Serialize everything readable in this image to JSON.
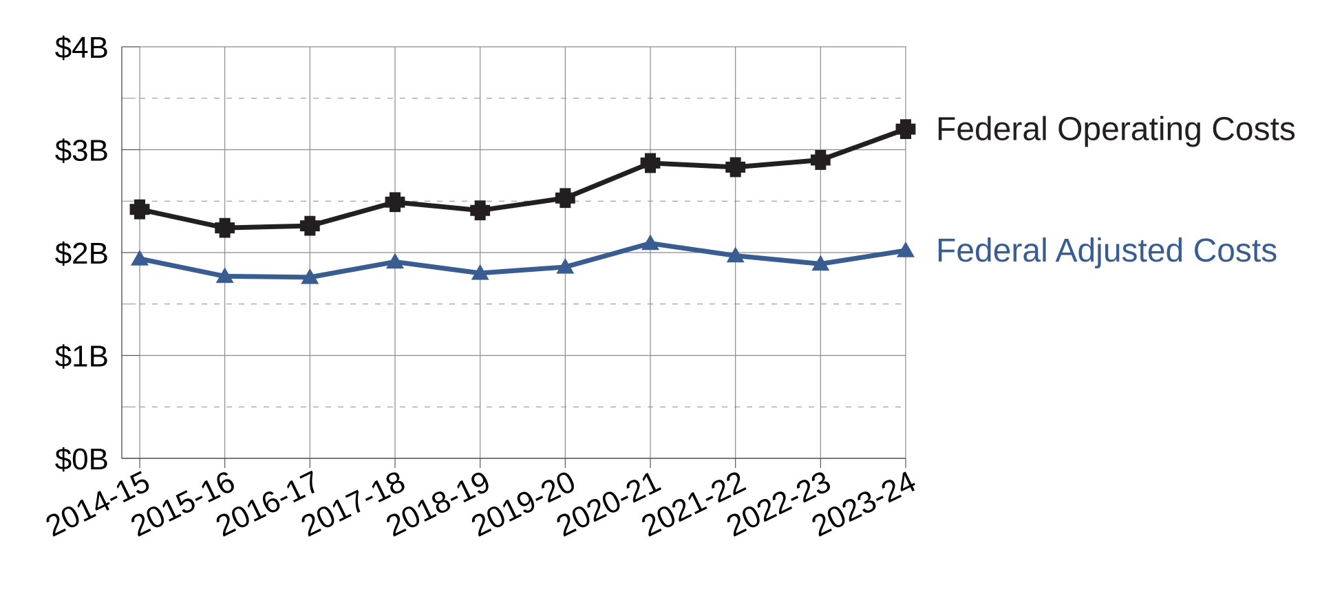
{
  "chart_data": {
    "type": "line",
    "categories": [
      "2014-15",
      "2015-16",
      "2016-17",
      "2017-18",
      "2018-19",
      "2019-20",
      "2020-21",
      "2021-22",
      "2022-23",
      "2023-24"
    ],
    "series": [
      {
        "name": "Federal Operating Costs",
        "values": [
          2.42,
          2.24,
          2.26,
          2.49,
          2.41,
          2.53,
          2.87,
          2.83,
          2.9,
          3.2
        ],
        "color": "#231f20",
        "marker": "cross"
      },
      {
        "name": "Federal Adjusted Costs",
        "values": [
          1.94,
          1.77,
          1.76,
          1.91,
          1.8,
          1.86,
          2.09,
          1.97,
          1.89,
          2.02
        ],
        "color": "#3a5d91",
        "marker": "triangle"
      }
    ],
    "yticks": [
      "$0B",
      "$1B",
      "$2B",
      "$3B",
      "$4B"
    ],
    "ytick_values": [
      0,
      1,
      2,
      3,
      4
    ],
    "ylim": [
      0,
      4
    ],
    "title": "",
    "xlabel": "",
    "ylabel": "",
    "grid": true,
    "legend": "inline-right"
  }
}
